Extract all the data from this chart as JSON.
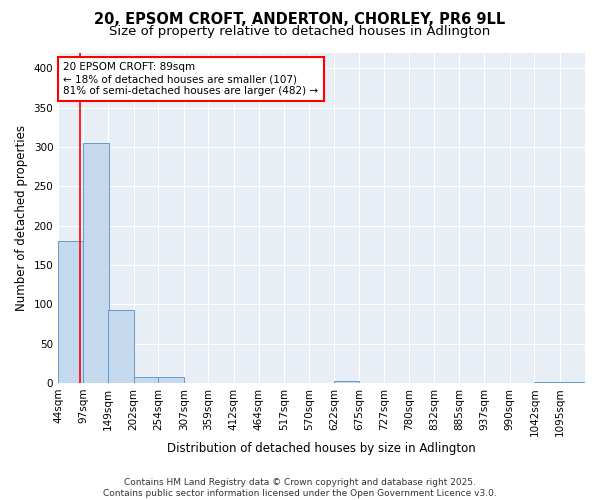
{
  "title": "20, EPSOM CROFT, ANDERTON, CHORLEY, PR6 9LL",
  "subtitle": "Size of property relative to detached houses in Adlington",
  "xlabel": "Distribution of detached houses by size in Adlington",
  "ylabel": "Number of detached properties",
  "bin_edges": [
    44,
    97,
    149,
    202,
    254,
    307,
    359,
    412,
    464,
    517,
    570,
    622,
    675,
    727,
    780,
    832,
    885,
    937,
    990,
    1042,
    1095
  ],
  "bar_heights": [
    180,
    305,
    93,
    8,
    8,
    0,
    0,
    0,
    0,
    0,
    0,
    3,
    0,
    0,
    0,
    0,
    0,
    0,
    0,
    1,
    1
  ],
  "bar_color": "#c5d9ee",
  "bar_edge_color": "#6699cc",
  "background_color": "#e8eef5",
  "grid_color": "#ffffff",
  "red_line_x": 89,
  "annotation_line1": "20 EPSOM CROFT: 89sqm",
  "annotation_line2": "← 18% of detached houses are smaller (107)",
  "annotation_line3": "81% of semi-detached houses are larger (482) →",
  "footer_line1": "Contains HM Land Registry data © Crown copyright and database right 2025.",
  "footer_line2": "Contains public sector information licensed under the Open Government Licence v3.0.",
  "ylim": [
    0,
    420
  ],
  "yticks": [
    0,
    50,
    100,
    150,
    200,
    250,
    300,
    350,
    400
  ],
  "title_fontsize": 10.5,
  "subtitle_fontsize": 9.5,
  "axis_label_fontsize": 8.5,
  "tick_fontsize": 7.5,
  "annotation_fontsize": 7.5,
  "footer_fontsize": 6.5
}
